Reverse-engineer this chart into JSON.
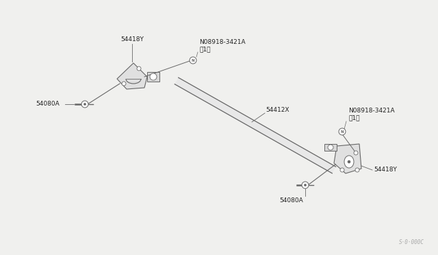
{
  "bg_color": "#f0f0ee",
  "line_color": "#666666",
  "text_color": "#222222",
  "watermark": "S·0·000C",
  "labels": {
    "54418Y_top": "54418Y",
    "54418Y_bot": "54418Y",
    "54080A_top": "54080A",
    "54080A_bot": "54080A",
    "54412X": "54412X",
    "nut_top": "N08918-3421A\n（1）",
    "nut_bot": "N08918-3421A\n（1）"
  },
  "font_size": 6.5,
  "fig_w": 6.4,
  "fig_h": 3.72,
  "dpi": 100
}
